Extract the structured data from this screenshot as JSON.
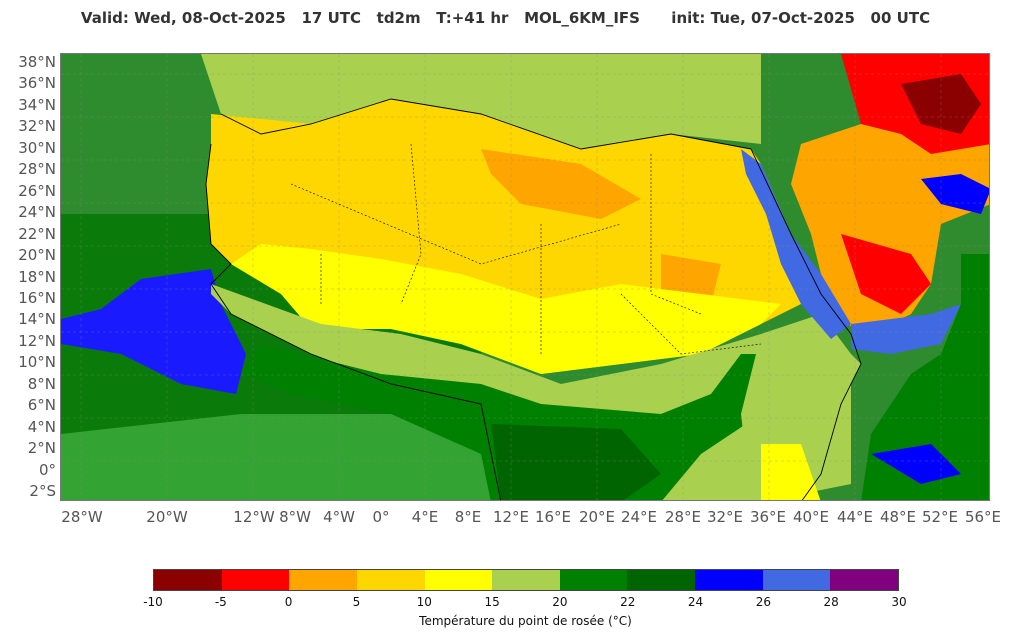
{
  "title": "Valid: Wed, 08-Oct-2025   17 UTC   td2m   T:+41 hr   MOL_6KM_IFS      init: Tue, 07-Oct-2025   00 UTC",
  "lat_labels": [
    "38°N",
    "36°N",
    "34°N",
    "32°N",
    "30°N",
    "28°N",
    "26°N",
    "24°N",
    "22°N",
    "20°N",
    "18°N",
    "16°N",
    "14°N",
    "12°N",
    "10°N",
    "8°N",
    "6°N",
    "4°N",
    "2°N",
    "0°",
    "2°S"
  ],
  "lon_labels": [
    "28°W",
    "20°W",
    "12°W",
    "8°W",
    "4°W",
    "0°",
    "4°E",
    "8°E",
    "12°E",
    "16°E",
    "20°E",
    "24°E",
    "28°E",
    "32°E",
    "36°E",
    "40°E",
    "44°E",
    "48°E",
    "52°E",
    "56°E"
  ],
  "colorbar": {
    "ticks": [
      "-10",
      "-5",
      "0",
      "5",
      "10",
      "15",
      "20",
      "22",
      "24",
      "26",
      "28",
      "30"
    ],
    "colors": [
      "#8b0000",
      "#ff0000",
      "#ffa500",
      "#ffd700",
      "#ffff00",
      "#aad050",
      "#008000",
      "#006400",
      "#0000ff",
      "#4169e1",
      "#800080"
    ],
    "label": "Température du point de rosée (°C)"
  },
  "palette": {
    "mediterranean": "#aad050",
    "sahara": "#ffd700",
    "sahel": "#ffff00",
    "savanna": "#aad050",
    "forest": "#008000",
    "ocean_dark": "#006400",
    "warm_sea": "#0000ff",
    "red_sea": "#4169e1",
    "arabia": "#ffa500",
    "arabia_dry": "#ff0000",
    "very_dry": "#8b0000"
  }
}
